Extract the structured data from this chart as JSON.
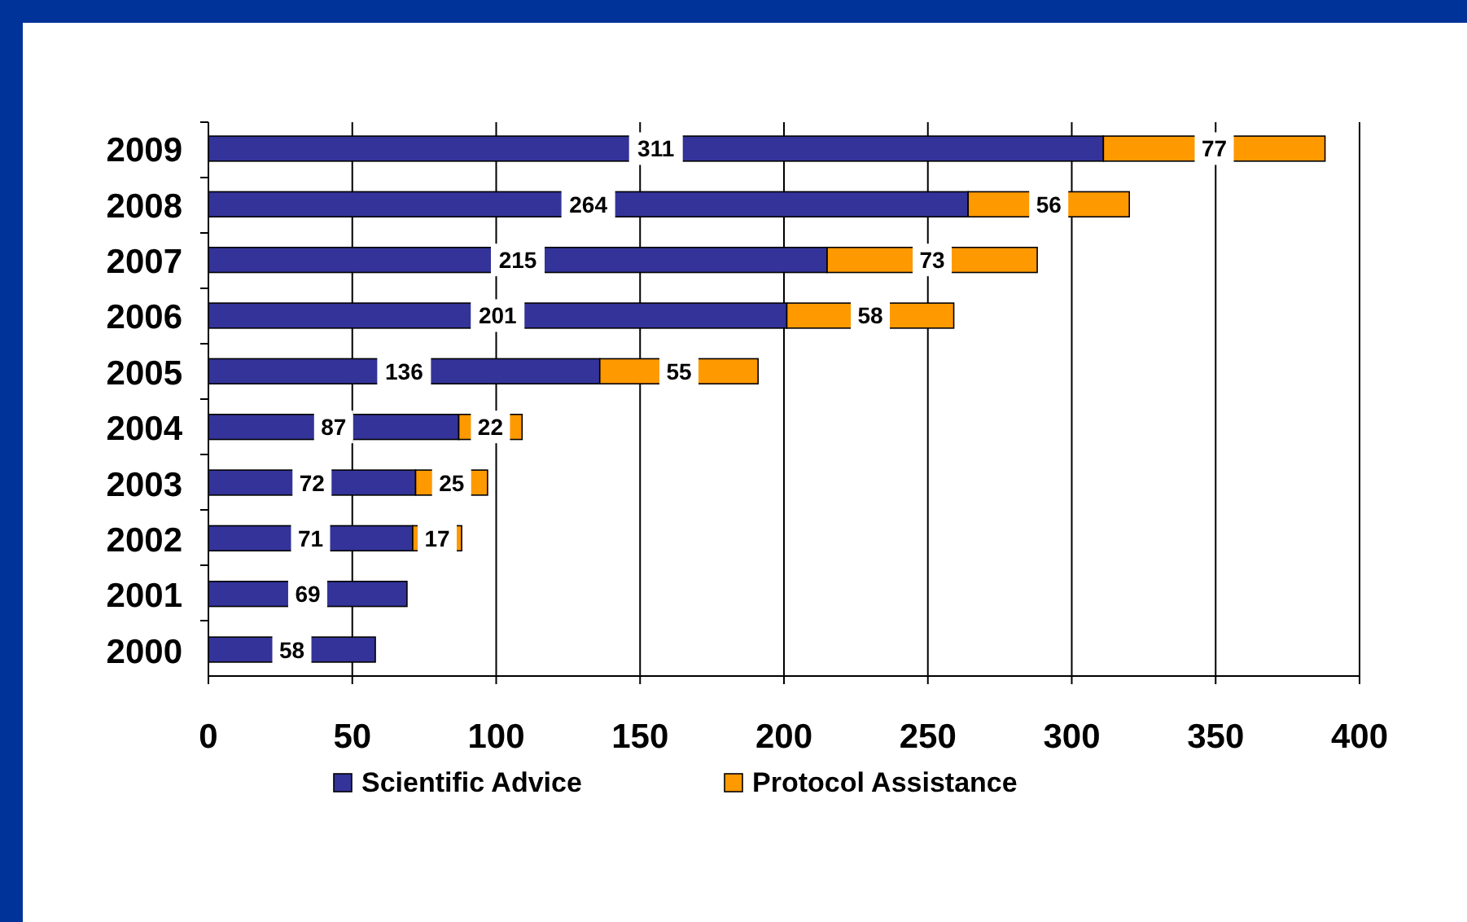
{
  "chart_data": {
    "type": "bar",
    "orientation": "horizontal",
    "stacked": true,
    "categories": [
      "2009",
      "2008",
      "2007",
      "2006",
      "2005",
      "2004",
      "2003",
      "2002",
      "2001",
      "2000"
    ],
    "series": [
      {
        "name": "Scientific Advice",
        "color": "#333399",
        "values": [
          311,
          264,
          215,
          201,
          136,
          87,
          72,
          71,
          69,
          58
        ]
      },
      {
        "name": "Protocol Assistance",
        "color": "#ff9900",
        "values": [
          77,
          56,
          73,
          58,
          55,
          22,
          25,
          17,
          null,
          null
        ]
      }
    ],
    "xlim": [
      0,
      400
    ],
    "xticks": [
      0,
      50,
      100,
      150,
      200,
      250,
      300,
      350,
      400
    ],
    "grid": "x",
    "legend": "bottom",
    "data_labels": true
  }
}
